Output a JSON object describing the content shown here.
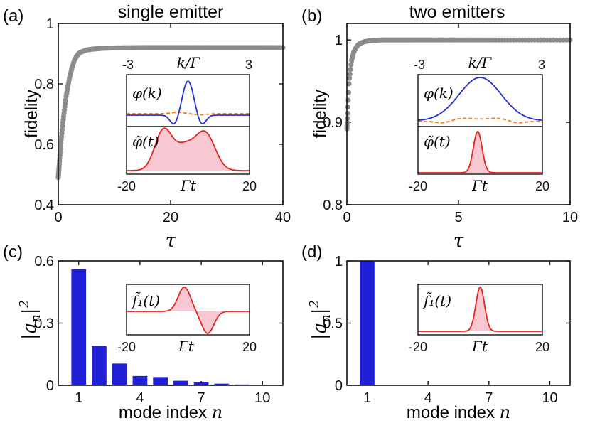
{
  "colors": {
    "grey_points": "#8a8d8c",
    "bars": "#1f1fd6",
    "blue_curve": "#2230d8",
    "red_curve": "#e8231b",
    "orange_dashed": "#f07820",
    "pink_fill": "#f7c8d2"
  },
  "panels": {
    "a": {
      "label": "(a)",
      "title": "single emitter",
      "xlabel": "τ",
      "ylabel": "fidelity"
    },
    "b": {
      "label": "(b)",
      "title": "two emitters",
      "xlabel": "τ",
      "ylabel": "fidelity"
    },
    "c": {
      "label": "(c)",
      "xlabel": "mode index ",
      "xlabel_var": "n",
      "ylabel": "|a",
      "ylabel_sub": "n",
      "ylabel_tail": "|",
      "ylabel_sup": "2"
    },
    "d": {
      "label": "(d)",
      "xlabel": "mode index ",
      "xlabel_var": "n",
      "ylabel": "|a",
      "ylabel_sub": "n",
      "ylabel_tail": "|",
      "ylabel_sup": "2"
    }
  },
  "insets": {
    "a": {
      "k_label": "k/Γ",
      "k_min": "-3",
      "k_max": "3",
      "phi_k": "φ(k)",
      "phi_t": "φ̃(t)",
      "t_label": "Γt",
      "t_min": "-20",
      "t_max": "20"
    },
    "b": {
      "k_label": "k/Γ",
      "k_min": "-3",
      "k_max": "3",
      "phi_k": "φ(k)",
      "phi_t": "φ̃(t)",
      "t_label": "Γt",
      "t_min": "-20",
      "t_max": "20"
    },
    "c": {
      "f_label": "f̃₁(t)",
      "t_label": "Γt",
      "t_min": "-20",
      "t_max": "20"
    },
    "d": {
      "f_label": "f̃₁(t)",
      "t_label": "Γt",
      "t_min": "-20",
      "t_max": "20"
    }
  },
  "chart_data": [
    {
      "panel": "a",
      "type": "scatter",
      "title": "single emitter",
      "xlabel": "τ",
      "ylabel": "fidelity",
      "xlim": [
        0,
        40
      ],
      "ylim": [
        0.4,
        1.0
      ],
      "xticks": [
        "0",
        "20",
        "40"
      ],
      "yticks": [
        "0.4",
        "0.6",
        "0.8",
        "1"
      ],
      "series": [
        {
          "x": [
            0.0,
            0.2,
            0.4,
            0.6,
            0.8,
            1.0,
            1.2,
            1.4,
            1.6,
            1.8,
            2.0,
            2.4,
            2.8,
            3.2,
            3.6,
            4.0,
            5.0,
            6.0,
            8.0,
            10.0,
            15.0,
            20.0,
            25.0,
            30.0,
            35.0,
            40.0
          ],
          "y": [
            0.49,
            0.54,
            0.59,
            0.63,
            0.67,
            0.7,
            0.73,
            0.76,
            0.78,
            0.8,
            0.82,
            0.85,
            0.875,
            0.89,
            0.9,
            0.905,
            0.912,
            0.915,
            0.918,
            0.919,
            0.92,
            0.92,
            0.92,
            0.92,
            0.92,
            0.92
          ]
        }
      ]
    },
    {
      "panel": "b",
      "type": "scatter",
      "title": "two emitters",
      "xlabel": "τ",
      "ylabel": "fidelity",
      "xlim": [
        0,
        10
      ],
      "ylim": [
        0.8,
        1.02
      ],
      "xticks": [
        "0",
        "5",
        "10"
      ],
      "yticks": [
        "0.8",
        "0.9",
        "1"
      ],
      "series": [
        {
          "x": [
            0.0,
            0.1,
            0.2,
            0.3,
            0.4,
            0.5,
            0.6,
            0.8,
            1.0,
            1.5,
            2.0,
            3.0,
            4.0,
            5.0,
            6.0,
            7.0,
            8.0,
            9.0,
            10.0
          ],
          "y": [
            0.892,
            0.95,
            0.974,
            0.985,
            0.99,
            0.994,
            0.996,
            0.998,
            0.999,
            1.0,
            1.0,
            1.0,
            1.0,
            1.0,
            1.0,
            1.0,
            1.0,
            1.0,
            1.0
          ]
        }
      ]
    },
    {
      "panel": "c",
      "type": "bar",
      "xlabel": "mode index n",
      "ylabel": "|a_n|^2",
      "xlim": [
        0,
        11
      ],
      "ylim": [
        0,
        0.6
      ],
      "xticks": [
        "1",
        "4",
        "7",
        "10"
      ],
      "yticks": [
        "0",
        "0.3",
        "0.6"
      ],
      "categories": [
        1,
        2,
        3,
        4,
        5,
        6,
        7,
        8,
        9,
        10
      ],
      "values": [
        0.56,
        0.19,
        0.105,
        0.045,
        0.04,
        0.022,
        0.014,
        0.008,
        0.004,
        0.002
      ]
    },
    {
      "panel": "d",
      "type": "bar",
      "xlabel": "mode index n",
      "ylabel": "|a_n|^2",
      "xlim": [
        0,
        11
      ],
      "ylim": [
        0,
        1.0
      ],
      "xticks": [
        "1",
        "4",
        "7",
        "10"
      ],
      "yticks": [
        "0",
        "0.5",
        "1"
      ],
      "categories": [
        1,
        2,
        3,
        4,
        5,
        6,
        7,
        8,
        9,
        10
      ],
      "values": [
        1.0,
        0,
        0,
        0,
        0,
        0,
        0,
        0,
        0,
        0
      ]
    }
  ]
}
